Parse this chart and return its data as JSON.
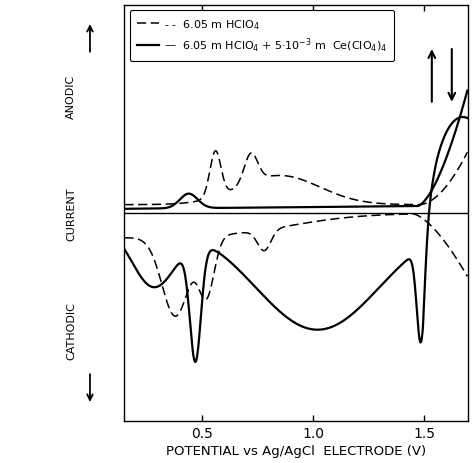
{
  "xlabel": "POTENTIAL vs Ag/AgCl  ELECTRODE (V)",
  "xticks": [
    0.5,
    1.0,
    1.5
  ],
  "xlim": [
    0.15,
    1.7
  ],
  "ylim": [
    -1.0,
    1.0
  ],
  "background_color": "#ffffff",
  "line_color": "#000000",
  "legend_label1": "- -  6.05 m HClO",
  "legend_label2": "—  6.05 m HClO",
  "figsize": [
    4.74,
    4.64
  ],
  "dpi": 100
}
